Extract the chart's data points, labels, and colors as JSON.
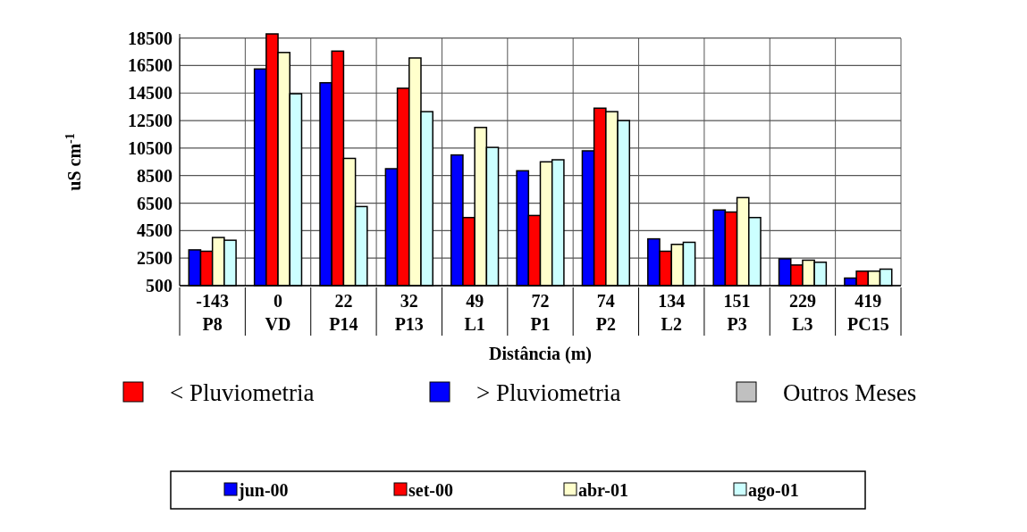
{
  "chart_data": {
    "type": "bar",
    "ylabel": "uS cm$^{-1}$",
    "xlabel": "Distância (m)",
    "categories": [
      "-143\nP8",
      "0\nVD",
      "22\nP14",
      "32\nP13",
      "49\nL1",
      "72\nP1",
      "74\nP2",
      "134\nL2",
      "151\nP3",
      "229\nL3",
      "419\nPC15"
    ],
    "series": [
      {
        "name": "jun-00",
        "color": "#0000ff",
        "values": [
          3100,
          16250,
          15250,
          9000,
          10000,
          8850,
          10300,
          3900,
          6000,
          2450,
          1050
        ]
      },
      {
        "name": "set-00",
        "color": "#ff0000",
        "values": [
          3000,
          18800,
          17550,
          14850,
          5450,
          5600,
          13400,
          3000,
          5850,
          2000,
          1550
        ]
      },
      {
        "name": "abr-01",
        "color": "#ffffcc",
        "values": [
          4000,
          17450,
          9750,
          17050,
          12000,
          9500,
          13150,
          3500,
          6900,
          2350,
          1550
        ]
      },
      {
        "name": "ago-01",
        "color": "#ccffff",
        "values": [
          3800,
          14450,
          6250,
          13150,
          10550,
          9650,
          12500,
          3650,
          5450,
          2200,
          1700
        ]
      }
    ],
    "ylim": [
      500,
      18800
    ],
    "yticks": [
      500,
      2500,
      4500,
      6500,
      8500,
      10500,
      12500,
      14500,
      16500,
      18500
    ],
    "grid": true,
    "legend": "bottom",
    "annotations": [
      "< Pluviometria",
      "> Pluviometria",
      "Outros Meses"
    ]
  }
}
